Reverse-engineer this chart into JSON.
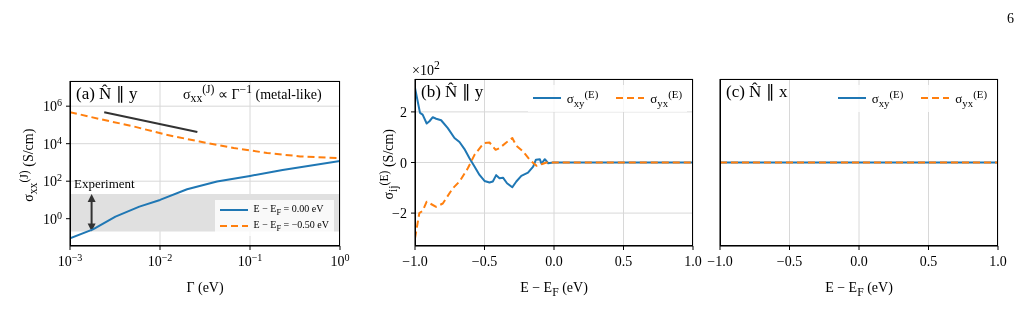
{
  "chart_data": [
    {
      "type": "line",
      "title": "(a) N̂ ∥ y",
      "xlabel": "Γ (eV)",
      "ylabel": "σ$_{xx}$$^{(J)}$ (S/cm)",
      "log": "xy",
      "xlim": [
        0.001,
        1
      ],
      "ylim": [
        0.035,
        22000000
      ],
      "xticks": [
        {
          "value": 0.001,
          "label": "10$^{−3}$"
        },
        {
          "value": 0.01,
          "label": "10$^{−2}$"
        },
        {
          "value": 0.1,
          "label": "10$^{−1}$"
        },
        {
          "value": 1,
          "label": "10$^{0}$"
        }
      ],
      "yticks": [
        {
          "value": 1,
          "label": "10$^{0}$"
        },
        {
          "value": 100,
          "label": "10$^{2}$"
        },
        {
          "value": 10000,
          "label": "10$^{4}$"
        },
        {
          "value": 1000000,
          "label": "10$^{6}$"
        }
      ],
      "grid": true,
      "legend": "bottom right",
      "bands": [
        {
          "axis": "y",
          "from": 0.21,
          "to": 21,
          "label": "Experiment",
          "color": "#e0e0e0"
        }
      ],
      "annotations": [
        "σ$_{xx}$$^{(J)}$ ∝ Γ$^{−1}$ (metal-like)"
      ],
      "series": [
        {
          "name": "E − E$_{F}$ = 0.00 eV",
          "color": "#1f77b4",
          "line_style": "solid",
          "x": [
            0.001,
            0.0018,
            0.0032,
            0.0059,
            0.01,
            0.02,
            0.043,
            0.1,
            0.23,
            1
          ],
          "values": [
            0.089,
            0.27,
            1.3,
            4.4,
            10,
            37,
            96,
            190,
            400,
            1200
          ]
        },
        {
          "name": "E − E$_{F}$ = −0.50 eV",
          "color": "#ff7f0e",
          "line_style": "dashed",
          "x": [
            0.001,
            0.0021,
            0.005,
            0.0117,
            0.0275,
            0.066,
            0.155,
            0.36,
            1
          ],
          "values": [
            480000,
            210000,
            85000,
            30000,
            13000,
            5900,
            3200,
            2100,
            1700
          ]
        },
        {
          "type": "line",
          "color": "#333333",
          "line_style": "solid",
          "x": [
            0.0024,
            0.026
          ],
          "values": [
            480000,
            42000
          ]
        }
      ]
    },
    {
      "type": "line",
      "title": "(b) N̂ ∥ y",
      "xlabel": "E − E$_{F}$ (eV)",
      "ylabel": "σ$_{ij}$$^{(E)}$ (S/cm)",
      "xlim": [
        -1,
        1
      ],
      "ylim": [
        -3.3,
        3.3
      ],
      "xticks": [
        {
          "value": -1,
          "label": "−1.0"
        },
        {
          "value": -0.5,
          "label": "−0.5"
        },
        {
          "value": 0,
          "label": "0.0"
        },
        {
          "value": 0.5,
          "label": "0.5"
        },
        {
          "value": 1,
          "label": "1.0"
        }
      ],
      "yticks": [
        {
          "value": -2,
          "label": "−2"
        },
        0,
        2
      ],
      "grid": true,
      "legend": "top right",
      "annotations": [
        "×10$^{2}$"
      ],
      "series": [
        {
          "name": "σ$_{xy}$$^{(E)}$",
          "color": "#1f77b4",
          "line_style": "solid",
          "x": [
            -1,
            -0.964,
            -0.945,
            -0.916,
            -0.896,
            -0.872,
            -0.848,
            -0.812,
            -0.764,
            -0.716,
            -0.68,
            -0.644,
            -0.608,
            -0.572,
            -0.536,
            -0.5,
            -0.464,
            -0.44,
            -0.416,
            -0.392,
            -0.367,
            -0.338,
            -0.3,
            -0.271,
            -0.235,
            -0.187,
            -0.15,
            -0.13,
            -0.102,
            -0.09,
            -0.066,
            -0.042,
            -0.006,
            0.5,
            1
          ],
          "values": [
            2.95,
            1.96,
            1.89,
            1.54,
            1.63,
            1.79,
            1.73,
            1.67,
            1.36,
            0.97,
            0.81,
            0.53,
            0.17,
            -0.16,
            -0.49,
            -0.73,
            -0.79,
            -0.75,
            -0.5,
            -0.62,
            -0.6,
            -0.82,
            -0.98,
            -0.75,
            -0.53,
            -0.4,
            -0.16,
            0.11,
            0.13,
            -0.05,
            0.13,
            -0.03,
            0,
            0,
            0
          ]
        },
        {
          "name": "σ$_{yx}$$^{(E)}$",
          "color": "#ff7f0e",
          "line_style": "dashed",
          "x": [
            -1,
            -0.969,
            -0.945,
            -0.916,
            -0.885,
            -0.848,
            -0.8,
            -0.728,
            -0.68,
            -0.62,
            -0.572,
            -0.524,
            -0.5,
            -0.464,
            -0.42,
            -0.392,
            -0.343,
            -0.3,
            -0.271,
            -0.223,
            -0.175,
            -0.126,
            -0.09,
            -0.054,
            0.5,
            1
          ],
          "values": [
            -3.0,
            -2.0,
            -1.91,
            -1.55,
            -1.64,
            -1.75,
            -1.62,
            -1.02,
            -0.75,
            -0.23,
            0.3,
            0.64,
            0.77,
            0.79,
            0.5,
            0.57,
            0.79,
            0.97,
            0.66,
            0.44,
            0.11,
            -0.13,
            -0.07,
            0,
            0,
            0
          ]
        }
      ]
    },
    {
      "type": "line",
      "title": "(c) N̂ ∥ x",
      "xlabel": "E − E$_{F}$ (eV)",
      "xlim": [
        -1,
        1
      ],
      "ylim": [
        -3.3,
        3.3
      ],
      "xticks": [
        {
          "value": -1,
          "label": "−1.0"
        },
        {
          "value": -0.5,
          "label": "−0.5"
        },
        {
          "value": 0,
          "label": "0.0"
        },
        {
          "value": 0.5,
          "label": "0.5"
        },
        {
          "value": 1,
          "label": "1.0"
        }
      ],
      "yticks": [
        -2,
        0,
        2
      ],
      "tick_labels": "x",
      "grid": true,
      "legend": "top right",
      "annotations": [
        "6"
      ],
      "series": [
        {
          "name": "σ$_{xy}$$^{(E)}$",
          "color": "#1f77b4",
          "line_style": "solid",
          "x": [
            -1,
            -0.5,
            0,
            0.5,
            1
          ],
          "values": [
            0,
            0,
            0,
            0,
            0
          ]
        },
        {
          "name": "σ$_{yx}$$^{(E)}$",
          "color": "#ff7f0e",
          "line_style": "dashed",
          "x": [
            -1,
            -0.5,
            0,
            0.5,
            1
          ],
          "values": [
            0,
            0,
            0,
            0,
            0
          ]
        }
      ]
    }
  ]
}
